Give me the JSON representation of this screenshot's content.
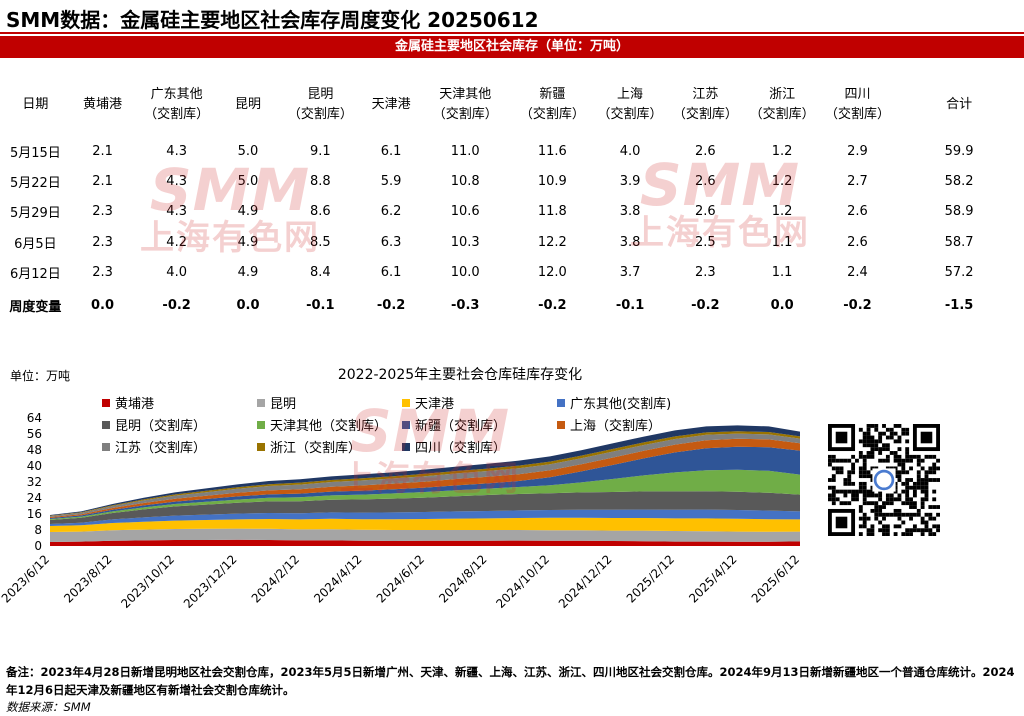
{
  "page": {
    "title": "SMM数据：金属硅主要地区社会库存周度变化 20250612",
    "banner": "金属硅主要地区社会库存（单位：万吨）",
    "footnote": "备注：2023年4月28日新增昆明地区社会交割仓库，2023年5月5日新增广州、天津、新疆、上海、江苏、浙江、四川地区社会交割仓库。2024年9月13日新增新疆地区一个普通仓库统计。2024年12月6日起天津及新疆地区有新增社会交割仓库统计。",
    "source": "数据来源：SMM",
    "watermark_logo": "SMM",
    "watermark_text": "上海有色网"
  },
  "table": {
    "headers": [
      {
        "line1": "日期",
        "line2": ""
      },
      {
        "line1": "黄埔港",
        "line2": ""
      },
      {
        "line1": "广东其他",
        "line2": "（交割库）"
      },
      {
        "line1": "昆明",
        "line2": ""
      },
      {
        "line1": "昆明",
        "line2": "（交割库）"
      },
      {
        "line1": "天津港",
        "line2": ""
      },
      {
        "line1": "天津其他",
        "line2": "（交割库）"
      },
      {
        "line1": "新疆",
        "line2": "（交割库）"
      },
      {
        "line1": "上海",
        "line2": "（交割库）"
      },
      {
        "line1": "江苏",
        "line2": "（交割库）"
      },
      {
        "line1": "浙江",
        "line2": "（交割库）"
      },
      {
        "line1": "四川",
        "line2": "（交割库）"
      },
      {
        "line1": "合计",
        "line2": ""
      }
    ],
    "rows": [
      [
        "5月15日",
        "2.1",
        "4.3",
        "5.0",
        "9.1",
        "6.1",
        "11.0",
        "11.6",
        "4.0",
        "2.6",
        "1.2",
        "2.9",
        "59.9"
      ],
      [
        "5月22日",
        "2.1",
        "4.3",
        "5.0",
        "8.8",
        "5.9",
        "10.8",
        "10.9",
        "3.9",
        "2.6",
        "1.2",
        "2.7",
        "58.2"
      ],
      [
        "5月29日",
        "2.3",
        "4.3",
        "4.9",
        "8.6",
        "6.2",
        "10.6",
        "11.8",
        "3.8",
        "2.6",
        "1.2",
        "2.6",
        "58.9"
      ],
      [
        "6月5日",
        "2.3",
        "4.2",
        "4.9",
        "8.5",
        "6.3",
        "10.3",
        "12.2",
        "3.8",
        "2.5",
        "1.1",
        "2.6",
        "58.7"
      ],
      [
        "6月12日",
        "2.3",
        "4.0",
        "4.9",
        "8.4",
        "6.1",
        "10.0",
        "12.0",
        "3.7",
        "2.3",
        "1.1",
        "2.4",
        "57.2"
      ]
    ],
    "change_row": [
      "周度变量",
      "0.0",
      "-0.2",
      "0.0",
      "-0.1",
      "-0.2",
      "-0.3",
      "-0.2",
      "-0.1",
      "-0.2",
      "0.0",
      "-0.2",
      "-1.5"
    ]
  },
  "chart_data": {
    "type": "area",
    "stacked": true,
    "title": "2022-2025年主要社会仓库硅库存变化",
    "unit_label": "单位：万吨",
    "ylim": [
      0,
      64
    ],
    "yticks": [
      "0",
      "8",
      "16",
      "24",
      "32",
      "40",
      "48",
      "56",
      "64"
    ],
    "xticks": [
      "2023/6/12",
      "2023/8/12",
      "2023/10/12",
      "2023/12/12",
      "2024/2/12",
      "2024/4/12",
      "2024/6/12",
      "2024/8/12",
      "2024/10/12",
      "2024/12/12",
      "2025/2/12",
      "2025/4/12",
      "2025/6/12"
    ],
    "x": [
      "2023/6/12",
      "2023/7/12",
      "2023/8/12",
      "2023/9/12",
      "2023/10/12",
      "2023/11/12",
      "2023/12/12",
      "2024/1/12",
      "2024/2/12",
      "2024/3/12",
      "2024/4/12",
      "2024/5/12",
      "2024/6/12",
      "2024/7/12",
      "2024/8/12",
      "2024/9/12",
      "2024/10/12",
      "2024/11/12",
      "2024/12/12",
      "2025/1/12",
      "2025/2/12",
      "2025/3/12",
      "2025/4/12",
      "2025/5/12",
      "2025/6/12"
    ],
    "series": [
      {
        "name": "黄埔港",
        "color": "#c00000",
        "values": [
          2.0,
          2.2,
          2.6,
          2.8,
          3.0,
          3.0,
          3.1,
          3.0,
          2.8,
          2.8,
          2.6,
          2.5,
          2.6,
          2.6,
          2.6,
          2.7,
          2.6,
          2.6,
          2.5,
          2.4,
          2.2,
          2.2,
          2.1,
          2.1,
          2.3
        ]
      },
      {
        "name": "昆明",
        "color": "#a5a5a5",
        "values": [
          5.0,
          5.0,
          5.3,
          5.4,
          5.5,
          5.6,
          5.6,
          5.6,
          5.5,
          5.6,
          5.5,
          5.5,
          5.4,
          5.4,
          5.4,
          5.3,
          5.3,
          5.3,
          5.2,
          5.3,
          5.3,
          5.2,
          5.1,
          5.0,
          4.9
        ]
      },
      {
        "name": "天津港",
        "color": "#ffc000",
        "values": [
          3.0,
          3.2,
          3.6,
          3.9,
          4.2,
          4.4,
          4.6,
          4.9,
          5.0,
          5.2,
          5.3,
          5.4,
          5.5,
          5.7,
          5.8,
          6.0,
          6.2,
          6.2,
          6.3,
          6.3,
          6.3,
          6.4,
          6.4,
          6.3,
          6.1
        ]
      },
      {
        "name": "广东其他(交割库)",
        "color": "#4472c4",
        "values": [
          1.0,
          1.2,
          1.8,
          2.2,
          2.5,
          2.7,
          2.9,
          3.0,
          3.1,
          3.2,
          3.3,
          3.4,
          3.5,
          3.6,
          3.7,
          3.8,
          3.9,
          4.0,
          4.1,
          4.2,
          4.3,
          4.4,
          4.4,
          4.3,
          4.0
        ]
      },
      {
        "name": "昆明（交割库）",
        "color": "#595959",
        "values": [
          2.0,
          2.5,
          3.2,
          4.0,
          4.6,
          5.0,
          5.4,
          5.8,
          6.0,
          6.3,
          6.6,
          6.9,
          7.2,
          7.6,
          8.0,
          8.2,
          8.4,
          8.7,
          8.9,
          9.1,
          9.2,
          9.2,
          9.1,
          8.9,
          8.4
        ]
      },
      {
        "name": "天津其他（交割库）",
        "color": "#70ad47",
        "values": [
          0.5,
          0.6,
          0.8,
          1.0,
          1.2,
          1.4,
          1.6,
          1.8,
          2.0,
          2.2,
          2.4,
          2.6,
          2.8,
          3.0,
          3.2,
          3.5,
          4.0,
          5.0,
          6.5,
          8.0,
          9.5,
          10.5,
          11.0,
          11.0,
          10.0
        ]
      },
      {
        "name": "新疆（交割库）",
        "color": "#2f5597",
        "values": [
          0.5,
          0.6,
          0.8,
          1.0,
          1.2,
          1.4,
          1.6,
          1.7,
          1.8,
          1.9,
          2.0,
          2.1,
          2.2,
          2.4,
          2.6,
          3.0,
          4.0,
          5.5,
          7.0,
          8.5,
          10.0,
          11.0,
          11.5,
          11.8,
          12.0
        ]
      },
      {
        "name": "上海（交割库）",
        "color": "#c55a11",
        "values": [
          0.5,
          0.6,
          0.9,
          1.2,
          1.4,
          1.6,
          1.8,
          2.0,
          2.2,
          2.4,
          2.6,
          2.8,
          3.0,
          3.2,
          3.3,
          3.4,
          3.5,
          3.6,
          3.7,
          3.8,
          3.9,
          4.0,
          4.0,
          3.9,
          3.7
        ]
      },
      {
        "name": "江苏（交割库）",
        "color": "#7f7f7f",
        "values": [
          0.5,
          0.7,
          1.0,
          1.3,
          1.6,
          1.8,
          2.0,
          2.2,
          2.3,
          2.4,
          2.5,
          2.6,
          2.7,
          2.8,
          2.9,
          3.0,
          3.0,
          3.0,
          3.0,
          2.9,
          2.8,
          2.7,
          2.6,
          2.5,
          2.3
        ]
      },
      {
        "name": "浙江（交割库）",
        "color": "#997300",
        "values": [
          0.2,
          0.3,
          0.4,
          0.5,
          0.6,
          0.7,
          0.8,
          0.9,
          1.0,
          1.0,
          1.1,
          1.1,
          1.2,
          1.2,
          1.2,
          1.3,
          1.3,
          1.3,
          1.3,
          1.3,
          1.3,
          1.2,
          1.2,
          1.2,
          1.1
        ]
      },
      {
        "name": "四川（交割库）",
        "color": "#203864",
        "values": [
          0.3,
          0.4,
          0.6,
          0.8,
          1.0,
          1.2,
          1.4,
          1.6,
          1.7,
          1.8,
          1.9,
          2.0,
          2.1,
          2.2,
          2.4,
          2.5,
          2.6,
          2.7,
          2.8,
          2.9,
          3.0,
          3.0,
          2.9,
          2.8,
          2.4
        ]
      }
    ]
  }
}
